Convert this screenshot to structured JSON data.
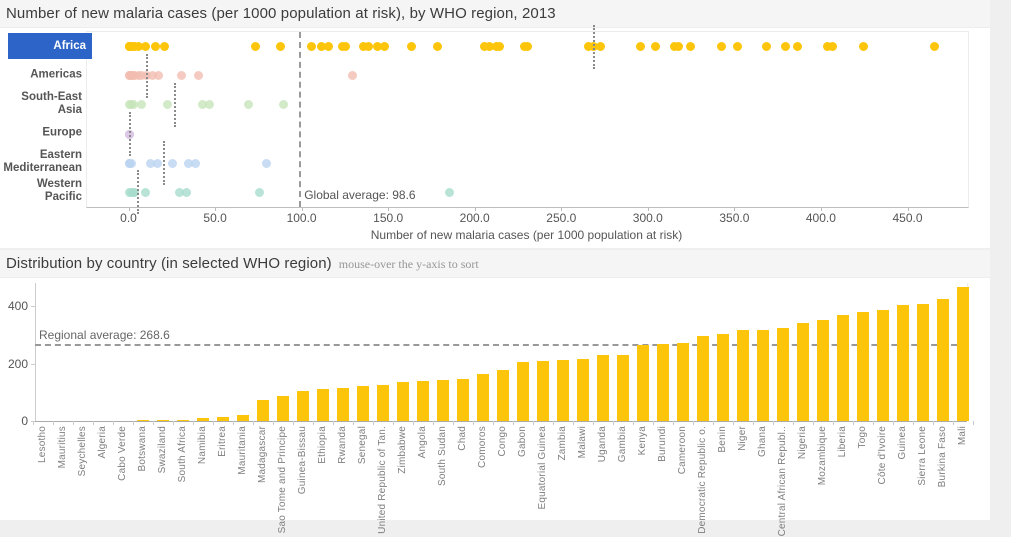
{
  "colors": {
    "selected_region_bg": "#2d64c7",
    "bar": "#fcc50a",
    "africa": "#fcc50a",
    "americas": "#f2bdb2",
    "south_east_asia": "#c7e5ba",
    "europe": "#dcc7e6",
    "eastern_mediterranean": "#bad3f0",
    "western_pacific": "#a7dccc"
  },
  "chart_data": [
    {
      "type": "scatter",
      "title": "Number of new malaria cases (per 1000 population at risk), by WHO region, 2013",
      "xlabel": "Number of new malaria cases (per 1000 population at risk)",
      "xlim": [
        -25,
        485
      ],
      "x_ticks": [
        "0.0",
        "50.0",
        "100.0",
        "150.0",
        "200.0",
        "250.0",
        "300.0",
        "350.0",
        "400.0",
        "450.0"
      ],
      "grid": false,
      "global_average": {
        "label": "Global average: 98.6",
        "value": 98.6
      },
      "series": [
        {
          "name": "Africa",
          "selected": true,
          "color": "#fcc50a",
          "avg_line": 268.6,
          "values": [
            0,
            0,
            0,
            0,
            1,
            2,
            3,
            5,
            9,
            15,
            20,
            73,
            87,
            105,
            111,
            115,
            123,
            125,
            135,
            138,
            143,
            147,
            163,
            178,
            205,
            208,
            212,
            214,
            228,
            230,
            265,
            268,
            272,
            295,
            304,
            315,
            317,
            324,
            342,
            351,
            368,
            379,
            386,
            403,
            406,
            424,
            465
          ]
        },
        {
          "name": "Americas",
          "selected": false,
          "color": "#f2bdb2",
          "avg_line": 10,
          "values": [
            0,
            0,
            1,
            1,
            2,
            3,
            5,
            7,
            10,
            13,
            17,
            30,
            40,
            129
          ]
        },
        {
          "name": "South-East Asia",
          "selected": false,
          "color": "#c7e5ba",
          "avg_line": 26,
          "values": [
            0,
            1,
            2,
            7,
            22,
            42,
            46,
            69,
            89
          ]
        },
        {
          "name": "Europe",
          "selected": false,
          "color": "#dcc7e6",
          "avg_line": 0.3,
          "values": [
            0,
            0,
            0,
            0,
            0
          ]
        },
        {
          "name": "Eastern Mediterranean",
          "selected": false,
          "color": "#bad3f0",
          "avg_line": 20,
          "values": [
            0,
            0,
            1,
            12,
            16,
            25,
            34,
            38,
            79
          ]
        },
        {
          "name": "Western Pacific",
          "selected": false,
          "color": "#a7dccc",
          "avg_line": 4.6,
          "values": [
            0,
            1,
            2,
            3,
            9,
            29,
            33,
            75,
            185
          ]
        }
      ]
    },
    {
      "type": "bar",
      "title": "Distribution by country (in selected WHO region)",
      "subtitle": "mouse-over the y-axis to sort",
      "ylim": [
        0,
        470
      ],
      "y_ticks": [
        "0",
        "200",
        "400"
      ],
      "regional_average": {
        "label": "Regional average: 268.6",
        "value": 268.6
      },
      "bar_color": "#fcc50a",
      "categories": [
        "Lesotho",
        "Mauritius",
        "Seychelles",
        "Algeria",
        "Cabo Verde",
        "Botswana",
        "Swaziland",
        "South Africa",
        "Namibia",
        "Eritrea",
        "Mauritania",
        "Madagascar",
        "Sao Tome and Principe",
        "Guinea-Bissau",
        "Ethiopia",
        "Rwanda",
        "Senegal",
        "United Republic of Tan.",
        "Zimbabwe",
        "Angola",
        "South Sudan",
        "Chad",
        "Comoros",
        "Congo",
        "Gabon",
        "Equatorial Guinea",
        "Zambia",
        "Malawi",
        "Uganda",
        "Gambia",
        "Kenya",
        "Burundi",
        "Cameroon",
        "Democratic Republic o.",
        "Benin",
        "Niger",
        "Ghana",
        "Central African Republ..",
        "Nigeria",
        "Mozambique",
        "Liberia",
        "Togo",
        "Côte d'Ivoire",
        "Guinea",
        "Sierra Leone",
        "Burkina Faso",
        "Mali"
      ],
      "values": [
        0,
        0,
        0,
        0,
        1,
        2,
        3,
        5,
        9,
        15,
        20,
        73,
        87,
        105,
        111,
        115,
        123,
        125,
        135,
        138,
        143,
        147,
        163,
        178,
        205,
        208,
        212,
        214,
        228,
        230,
        265,
        268,
        272,
        295,
        304,
        315,
        317,
        324,
        342,
        351,
        368,
        379,
        386,
        403,
        406,
        424,
        465
      ]
    }
  ]
}
